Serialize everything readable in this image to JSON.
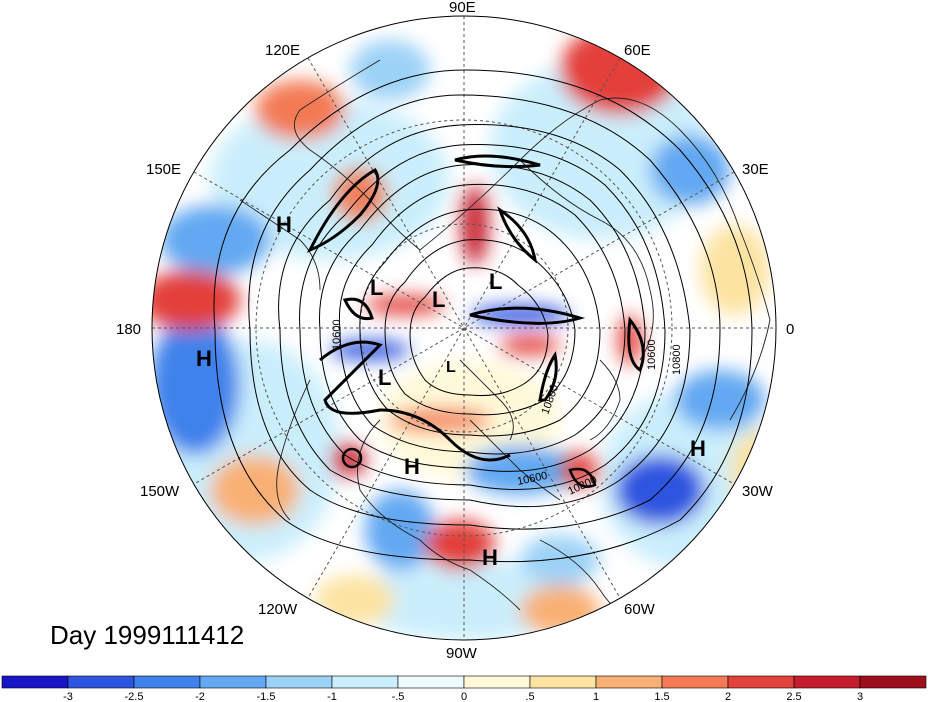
{
  "title": "Day 1999111412",
  "longitude_labels": {
    "top": "90E",
    "top_left": "120E",
    "top_right": "60E",
    "upper_left": "150E",
    "upper_right": "30E",
    "left": "180",
    "right": "0",
    "lower_left": "150W",
    "lower_right": "30W",
    "bottom_left": "120W",
    "bottom_right": "60W",
    "bottom": "90W"
  },
  "pressure_systems": [
    {
      "id": "h1",
      "label": "H"
    },
    {
      "id": "h2",
      "label": "H"
    },
    {
      "id": "h3",
      "label": "H"
    },
    {
      "id": "h4",
      "label": "H"
    },
    {
      "id": "h5",
      "label": "H"
    },
    {
      "id": "l1",
      "label": "L"
    },
    {
      "id": "l2",
      "label": "L"
    },
    {
      "id": "l3",
      "label": "L"
    },
    {
      "id": "l4",
      "label": "L"
    },
    {
      "id": "l5",
      "label": "L"
    }
  ],
  "contour_labels": [
    "10600",
    "10800",
    "10800",
    "10600",
    "10800",
    "10600"
  ],
  "colorbar": {
    "tick_labels": [
      "-3",
      "-2.5",
      "-2",
      "-1.5",
      "-1",
      "-.5",
      "0",
      ".5",
      "1",
      "1.5",
      "2",
      "2.5",
      "3"
    ],
    "colors": [
      "#1a14c8",
      "#2d55e0",
      "#3f82eb",
      "#62a8f2",
      "#9dd2f7",
      "#cbeefc",
      "#eefcff",
      "#fff9d9",
      "#fde3a1",
      "#f9b074",
      "#f37a55",
      "#e3413b",
      "#c51d2c",
      "#9e0f1c"
    ]
  }
}
